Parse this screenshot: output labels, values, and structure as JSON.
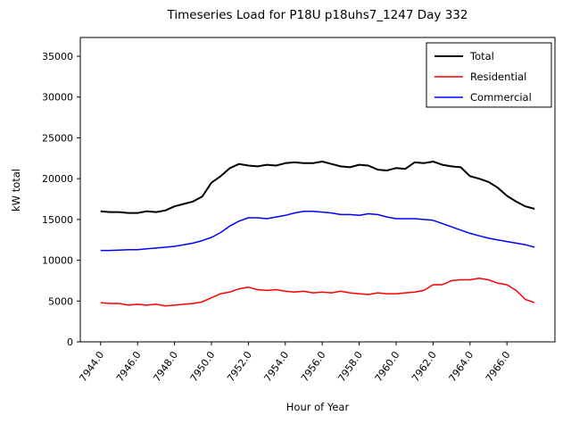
{
  "chart_data": {
    "type": "line",
    "title": "Timeseries Load for P18U p18uhs7_1247  Day 332",
    "xlabel": "Hour of Year",
    "ylabel": "kW total",
    "xlim": [
      7942.9,
      7968.6
    ],
    "ylim": [
      0,
      37300
    ],
    "xticks": [
      7944,
      7946,
      7948,
      7950,
      7952,
      7954,
      7956,
      7958,
      7960,
      7962,
      7964,
      7966
    ],
    "yticks": [
      0,
      5000,
      10000,
      15000,
      20000,
      25000,
      30000,
      35000
    ],
    "legend_position": "upper right",
    "grid": false,
    "x": [
      7944.0,
      7944.5,
      7945.0,
      7945.5,
      7946.0,
      7946.5,
      7947.0,
      7947.5,
      7948.0,
      7948.5,
      7949.0,
      7949.5,
      7950.0,
      7950.5,
      7951.0,
      7951.5,
      7952.0,
      7952.5,
      7953.0,
      7953.5,
      7954.0,
      7954.5,
      7955.0,
      7955.5,
      7956.0,
      7956.5,
      7957.0,
      7957.5,
      7958.0,
      7958.5,
      7959.0,
      7959.5,
      7960.0,
      7960.5,
      7961.0,
      7961.5,
      7962.0,
      7962.5,
      7963.0,
      7963.5,
      7964.0,
      7964.5,
      7965.0,
      7965.5,
      7966.0,
      7966.5,
      7967.0,
      7967.5
    ],
    "series": [
      {
        "name": "Total",
        "color": "#000000",
        "linewidth": 2,
        "values": [
          16000,
          15900,
          15900,
          15800,
          15800,
          16000,
          15900,
          16100,
          16600,
          16900,
          17200,
          17800,
          19500,
          20300,
          21300,
          21800,
          21600,
          21500,
          21700,
          21600,
          21900,
          22000,
          21900,
          21900,
          22100,
          21800,
          21500,
          21400,
          21700,
          21600,
          21100,
          21000,
          21300,
          21200,
          22000,
          21900,
          22100,
          21700,
          21500,
          21400,
          20300,
          20000,
          19600,
          18900,
          17900,
          17200,
          16600,
          16300
        ]
      },
      {
        "name": "Residential",
        "color": "#ff0000",
        "linewidth": 1.5,
        "values": [
          4800,
          4700,
          4700,
          4500,
          4600,
          4500,
          4600,
          4400,
          4500,
          4600,
          4700,
          4900,
          5400,
          5900,
          6100,
          6500,
          6700,
          6400,
          6300,
          6400,
          6200,
          6100,
          6200,
          6000,
          6100,
          6000,
          6200,
          6000,
          5900,
          5800,
          6000,
          5900,
          5900,
          6000,
          6100,
          6300,
          7000,
          7000,
          7500,
          7600,
          7600,
          7800,
          7600,
          7200,
          7000,
          6300,
          5200,
          4800
        ]
      },
      {
        "name": "Commercial",
        "color": "#0000ff",
        "linewidth": 1.5,
        "values": [
          11200,
          11200,
          11250,
          11300,
          11300,
          11400,
          11500,
          11600,
          11700,
          11900,
          12100,
          12400,
          12800,
          13400,
          14200,
          14800,
          15200,
          15200,
          15100,
          15300,
          15500,
          15800,
          16000,
          16000,
          15900,
          15800,
          15600,
          15600,
          15500,
          15700,
          15600,
          15300,
          15100,
          15100,
          15100,
          15000,
          14900,
          14500,
          14100,
          13700,
          13300,
          13000,
          12700,
          12500,
          12300,
          12100,
          11900,
          11600
        ]
      }
    ]
  }
}
